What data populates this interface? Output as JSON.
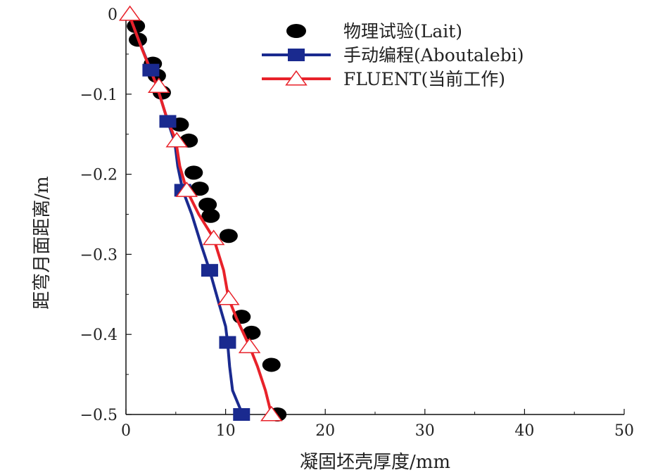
{
  "chart_data": {
    "type": "line",
    "xlabel": "凝固坯壳厚度/mm",
    "ylabel": "距弯月面距离/m",
    "xlim": [
      0,
      50
    ],
    "ylim": [
      -0.5,
      0
    ],
    "xticks": [
      "0",
      "10",
      "20",
      "30",
      "40",
      "50"
    ],
    "yticks": [
      "0",
      "−0.1",
      "−0.2",
      "−0.3",
      "−0.4",
      "−0.5"
    ],
    "legend_position": "top-right",
    "series": [
      {
        "name": "物理试验(Lait)",
        "kind": "scatter",
        "marker": "ellipse",
        "color": "#000000",
        "points": [
          [
            1.0,
            -0.015
          ],
          [
            1.2,
            -0.032
          ],
          [
            2.7,
            -0.062
          ],
          [
            3.1,
            -0.077
          ],
          [
            3.6,
            -0.098
          ],
          [
            5.4,
            -0.138
          ],
          [
            6.3,
            -0.158
          ],
          [
            6.8,
            -0.198
          ],
          [
            7.4,
            -0.218
          ],
          [
            8.2,
            -0.238
          ],
          [
            8.5,
            -0.252
          ],
          [
            10.3,
            -0.277
          ],
          [
            11.6,
            -0.378
          ],
          [
            12.6,
            -0.398
          ],
          [
            14.6,
            -0.438
          ],
          [
            15.2,
            -0.5
          ]
        ]
      },
      {
        "name": "手动编程(Aboutalebi)",
        "kind": "line",
        "marker": "square",
        "color": "#1a2a8f",
        "points": [
          [
            0.3,
            0.0
          ],
          [
            1.2,
            -0.03
          ],
          [
            2.5,
            -0.07
          ],
          [
            3.1,
            -0.09
          ],
          [
            4.2,
            -0.134
          ],
          [
            4.9,
            -0.16
          ],
          [
            5.2,
            -0.19
          ],
          [
            5.7,
            -0.22
          ],
          [
            6.6,
            -0.25
          ],
          [
            7.6,
            -0.29
          ],
          [
            8.4,
            -0.32
          ],
          [
            9.3,
            -0.36
          ],
          [
            10.0,
            -0.39
          ],
          [
            10.2,
            -0.41
          ],
          [
            10.4,
            -0.44
          ],
          [
            10.7,
            -0.47
          ],
          [
            11.7,
            -0.5
          ]
        ],
        "markers": [
          [
            2.5,
            -0.07
          ],
          [
            4.2,
            -0.134
          ],
          [
            5.7,
            -0.22
          ],
          [
            8.4,
            -0.32
          ],
          [
            10.2,
            -0.41
          ],
          [
            11.6,
            -0.5
          ]
        ]
      },
      {
        "name": "FLUENT(当前工作)",
        "kind": "line",
        "marker": "triangle",
        "color": "#e8222a",
        "points": [
          [
            0.3,
            0.0
          ],
          [
            1.5,
            -0.04
          ],
          [
            3.1,
            -0.09
          ],
          [
            4.1,
            -0.13
          ],
          [
            5.0,
            -0.158
          ],
          [
            5.4,
            -0.19
          ],
          [
            6.1,
            -0.22
          ],
          [
            7.3,
            -0.25
          ],
          [
            8.8,
            -0.28
          ],
          [
            9.8,
            -0.32
          ],
          [
            10.3,
            -0.355
          ],
          [
            11.1,
            -0.38
          ],
          [
            12.4,
            -0.415
          ],
          [
            13.2,
            -0.44
          ],
          [
            14.0,
            -0.47
          ],
          [
            14.6,
            -0.5
          ]
        ],
        "markers": [
          [
            0.4,
            0.0
          ],
          [
            3.3,
            -0.09
          ],
          [
            5.1,
            -0.158
          ],
          [
            6.1,
            -0.22
          ],
          [
            8.8,
            -0.28
          ],
          [
            10.3,
            -0.355
          ],
          [
            12.4,
            -0.415
          ],
          [
            14.6,
            -0.5
          ]
        ]
      }
    ]
  }
}
